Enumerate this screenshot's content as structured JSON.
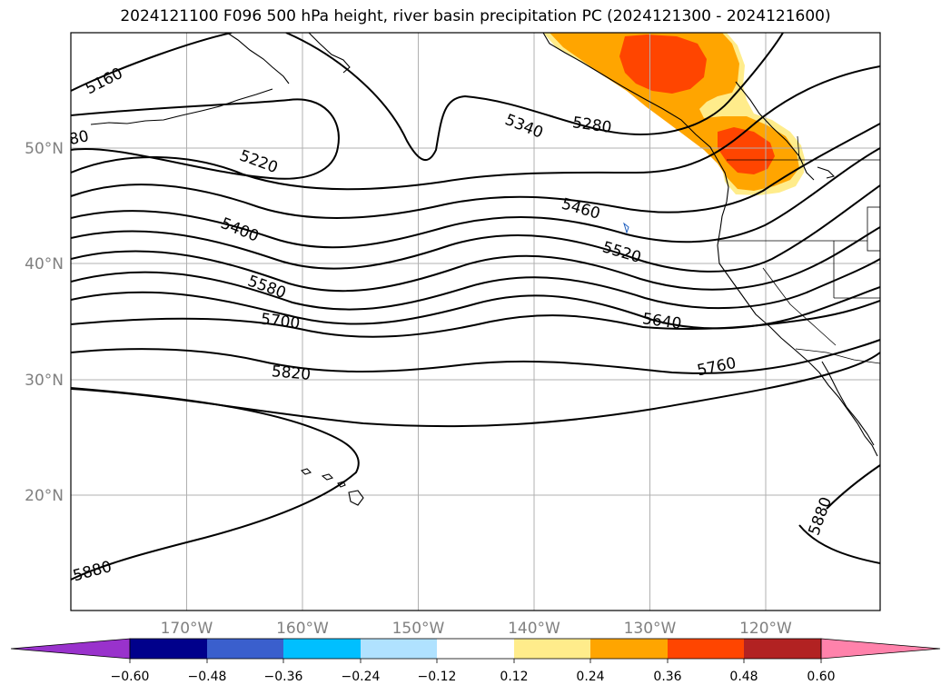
{
  "title": "2024121100 F096 500 hPa height, river basin precipitation PC (2024121300 - 2024121600)",
  "lat_labels": [
    "50°N",
    "40°N",
    "30°N",
    "20°N"
  ],
  "lon_labels": [
    "170°W",
    "160°W",
    "150°W",
    "140°W",
    "130°W",
    "120°W"
  ],
  "contour_labels": [
    "5160",
    "5220",
    "5280",
    "5340",
    "5400",
    "5460",
    "5520",
    "5580",
    "5640",
    "5700",
    "5760",
    "5820",
    "5880",
    "5880",
    "80"
  ],
  "colorbar": {
    "tick_labels": [
      "−0.60",
      "−0.48",
      "−0.36",
      "−0.24",
      "−0.12",
      "0.12",
      "0.24",
      "0.36",
      "0.48",
      "0.60"
    ],
    "colors": [
      "#9932cc",
      "#00008b",
      "#3a5fcd",
      "#00bfff",
      "#b0e2ff",
      "#ffffff",
      "#ffec8b",
      "#ffa500",
      "#ff4500",
      "#b22222",
      "#ff82ab"
    ]
  },
  "precip_colors": {
    "light": "#ffec8b",
    "medium": "#ffa500",
    "heavy": "#ff4500"
  }
}
